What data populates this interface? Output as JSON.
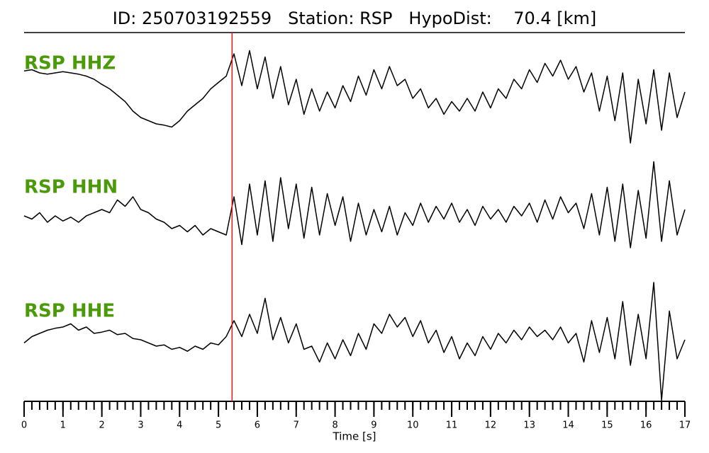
{
  "chart_data": {
    "type": "line",
    "title": "ID: 250703192559   Station: RSP   HypoDist:    70.4 [km]",
    "xlabel": "Time [s]",
    "xlim": [
      0,
      17
    ],
    "xticks": [
      0,
      1,
      2,
      3,
      4,
      5,
      6,
      7,
      8,
      9,
      10,
      11,
      12,
      13,
      14,
      15,
      16,
      17
    ],
    "xminor_step": 0.2,
    "ylim": [
      -1,
      1
    ],
    "pick_time": 5.35,
    "pick_color": "#e8141c",
    "label_color": "#4a9a0a",
    "x": [
      0,
      0.2,
      0.4,
      0.6,
      0.8,
      1,
      1.2,
      1.4,
      1.6,
      1.8,
      2,
      2.2,
      2.4,
      2.6,
      2.8,
      3,
      3.2,
      3.4,
      3.6,
      3.8,
      4,
      4.2,
      4.4,
      4.6,
      4.8,
      5,
      5.2,
      5.4,
      5.6,
      5.8,
      6,
      6.2,
      6.4,
      6.6,
      6.8,
      7,
      7.2,
      7.4,
      7.6,
      7.8,
      8,
      8.2,
      8.4,
      8.6,
      8.8,
      9,
      9.2,
      9.4,
      9.6,
      9.8,
      10,
      10.2,
      10.4,
      10.6,
      10.8,
      11,
      11.2,
      11.4,
      11.6,
      11.8,
      12,
      12.2,
      12.4,
      12.6,
      12.8,
      13,
      13.2,
      13.4,
      13.6,
      13.8,
      14,
      14.2,
      14.4,
      14.6,
      14.8,
      15,
      15.2,
      15.4,
      15.6,
      15.8,
      16,
      16.2,
      16.4,
      16.6,
      16.8,
      17
    ],
    "series": [
      {
        "name": "RSP HHZ",
        "color": "#000000",
        "values": [
          0.33,
          0.35,
          0.3,
          0.28,
          0.3,
          0.32,
          0.3,
          0.28,
          0.25,
          0.2,
          0.12,
          0.05,
          -0.05,
          -0.15,
          -0.3,
          -0.4,
          -0.45,
          -0.5,
          -0.52,
          -0.55,
          -0.45,
          -0.3,
          -0.2,
          -0.1,
          0.05,
          0.15,
          0.25,
          0.6,
          0.1,
          0.65,
          0.05,
          0.55,
          -0.1,
          0.4,
          -0.2,
          0.2,
          -0.35,
          0.05,
          -0.3,
          0.0,
          -0.25,
          0.1,
          -0.15,
          0.25,
          -0.05,
          0.35,
          0.05,
          0.4,
          0.1,
          0.2,
          -0.1,
          0.05,
          -0.25,
          -0.1,
          -0.35,
          -0.15,
          -0.3,
          -0.1,
          -0.3,
          0.0,
          -0.25,
          0.05,
          -0.1,
          0.2,
          0.05,
          0.35,
          0.15,
          0.45,
          0.25,
          0.5,
          0.2,
          0.4,
          0.0,
          0.3,
          -0.3,
          0.25,
          -0.45,
          0.3,
          -0.8,
          0.2,
          -0.5,
          0.35,
          -0.6,
          0.3,
          -0.4,
          0.0
        ]
      },
      {
        "name": "RSP HHN",
        "color": "#000000",
        "values": [
          0.0,
          -0.05,
          0.05,
          -0.1,
          0.0,
          -0.08,
          -0.02,
          -0.1,
          0.0,
          0.05,
          0.1,
          0.05,
          0.25,
          0.15,
          0.3,
          0.1,
          0.05,
          -0.05,
          -0.1,
          -0.2,
          -0.15,
          -0.25,
          -0.15,
          -0.3,
          -0.2,
          -0.25,
          -0.3,
          0.3,
          -0.45,
          0.5,
          -0.3,
          0.55,
          -0.4,
          0.6,
          -0.2,
          0.5,
          -0.35,
          0.45,
          -0.3,
          0.35,
          -0.15,
          0.3,
          -0.4,
          0.2,
          -0.3,
          0.1,
          -0.25,
          0.15,
          -0.3,
          0.05,
          -0.15,
          0.2,
          -0.1,
          0.15,
          -0.05,
          0.2,
          -0.1,
          0.1,
          -0.15,
          0.15,
          -0.05,
          0.1,
          -0.1,
          0.15,
          0.0,
          0.2,
          -0.1,
          0.25,
          -0.05,
          0.3,
          0.05,
          0.2,
          -0.2,
          0.35,
          -0.3,
          0.45,
          -0.4,
          0.5,
          -0.5,
          0.4,
          -0.35,
          0.85,
          -0.4,
          0.55,
          -0.3,
          0.1
        ]
      },
      {
        "name": "RSP HHE",
        "color": "#000000",
        "values": [
          -0.05,
          0.05,
          0.1,
          0.15,
          0.18,
          0.2,
          0.25,
          0.15,
          0.2,
          0.1,
          0.12,
          0.15,
          0.08,
          0.1,
          0.02,
          0.0,
          -0.05,
          -0.1,
          -0.08,
          -0.15,
          -0.12,
          -0.18,
          -0.1,
          -0.15,
          -0.05,
          -0.08,
          0.05,
          0.3,
          0.05,
          0.4,
          0.1,
          0.65,
          0.0,
          0.35,
          -0.05,
          0.25,
          -0.15,
          -0.1,
          -0.35,
          -0.05,
          -0.3,
          0.0,
          -0.25,
          0.1,
          -0.15,
          0.25,
          0.1,
          0.4,
          0.2,
          0.35,
          0.05,
          0.3,
          -0.05,
          0.15,
          -0.2,
          0.05,
          -0.3,
          -0.05,
          -0.25,
          0.05,
          -0.15,
          0.1,
          -0.05,
          0.15,
          0.0,
          0.2,
          0.05,
          0.15,
          0.0,
          0.2,
          -0.05,
          0.1,
          -0.35,
          0.3,
          -0.2,
          0.35,
          -0.3,
          0.6,
          -0.4,
          0.4,
          -0.3,
          0.9,
          -0.95,
          0.45,
          -0.3,
          0.0
        ]
      }
    ]
  }
}
